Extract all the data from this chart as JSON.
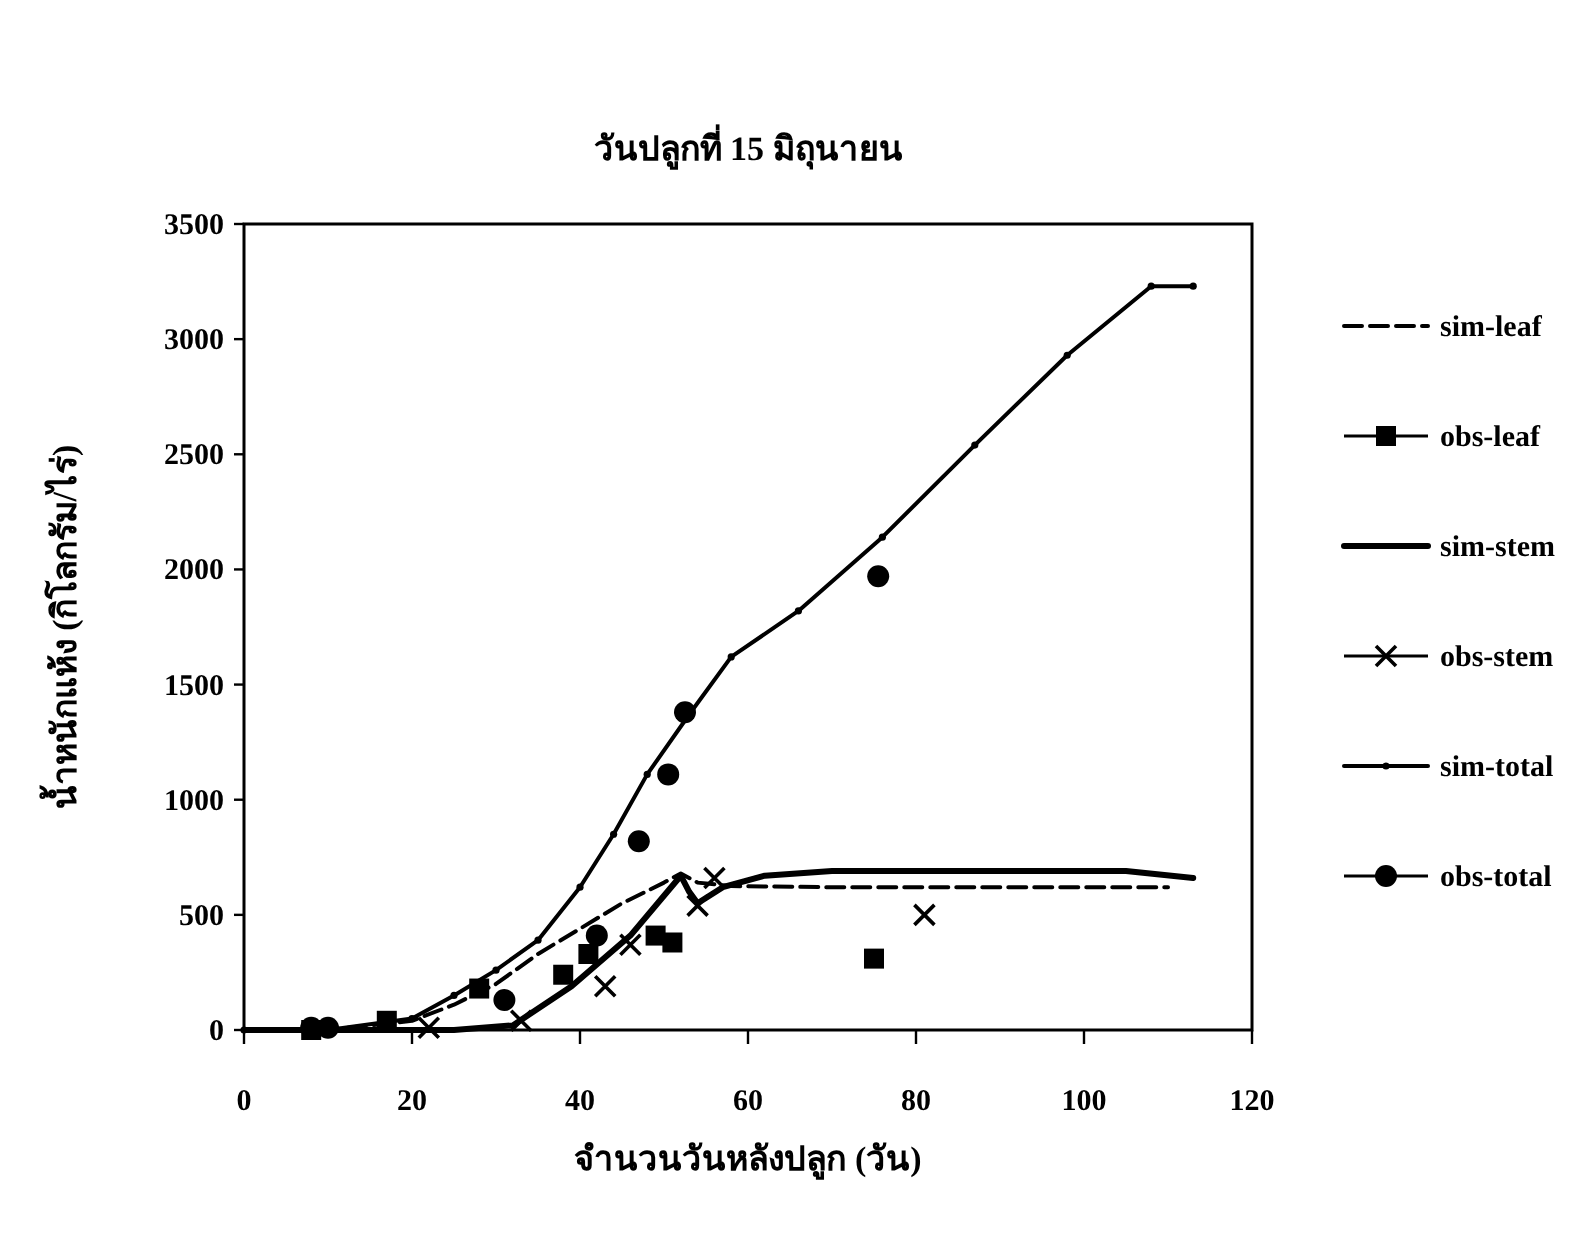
{
  "chart_data": {
    "type": "line",
    "title": "วันปลูกที่ 15 มิถุนายน",
    "xlabel": "จำนวนวันหลังปลูก (วัน)",
    "ylabel": "น้ำหนักแห้ง (กิโลกรัม/ไร่)",
    "xlim": [
      0,
      120
    ],
    "ylim": [
      0,
      3500
    ],
    "xticks": [
      0,
      20,
      40,
      60,
      80,
      100,
      120
    ],
    "yticks": [
      0,
      500,
      1000,
      1500,
      2000,
      2500,
      3000,
      3500
    ],
    "legend": "right",
    "series": [
      {
        "name": "sim-leaf",
        "color": "#000000",
        "line_style": "dashed",
        "marker": "none",
        "x": [
          0,
          10,
          20,
          25,
          30,
          35,
          40,
          45,
          50,
          52,
          54,
          58,
          70,
          90,
          110
        ],
        "values": [
          0,
          0,
          40,
          110,
          200,
          330,
          440,
          550,
          640,
          680,
          640,
          625,
          620,
          620,
          620
        ]
      },
      {
        "name": "obs-leaf",
        "type": "scatter",
        "color": "#000000",
        "marker": "square",
        "x": [
          8,
          17,
          28,
          38,
          41,
          49,
          51,
          75
        ],
        "values": [
          0,
          40,
          180,
          240,
          330,
          410,
          380,
          310
        ]
      },
      {
        "name": "sim-stem",
        "color": "#000000",
        "line_style": "solid",
        "marker": "none",
        "x": [
          0,
          25,
          32,
          39,
          46,
          52,
          53,
          54,
          57,
          62,
          70,
          100,
          105,
          113
        ],
        "values": [
          0,
          0,
          20,
          190,
          410,
          670,
          600,
          550,
          620,
          670,
          690,
          690,
          690,
          660
        ]
      },
      {
        "name": "obs-stem",
        "type": "scatter",
        "color": "#000000",
        "marker": "cross",
        "x": [
          22,
          33,
          43,
          46,
          54,
          56,
          81
        ],
        "values": [
          10,
          40,
          190,
          370,
          540,
          660,
          500
        ]
      },
      {
        "name": "sim-total",
        "color": "#000000",
        "line_style": "solid",
        "marker": "circle",
        "x": [
          0,
          10,
          20,
          25,
          30,
          35,
          40,
          44,
          48,
          53,
          58,
          66,
          76,
          87,
          98,
          108,
          113
        ],
        "values": [
          0,
          0,
          50,
          150,
          260,
          390,
          620,
          850,
          1110,
          1370,
          1620,
          1820,
          2140,
          2540,
          2930,
          3230,
          3230
        ]
      },
      {
        "name": "obs-total",
        "type": "scatter",
        "color": "#000000",
        "marker": "circle",
        "x": [
          8,
          10,
          31,
          42,
          47,
          50.5,
          52.5,
          75.5
        ],
        "values": [
          10,
          10,
          130,
          410,
          820,
          1110,
          1380,
          1970
        ]
      }
    ]
  }
}
